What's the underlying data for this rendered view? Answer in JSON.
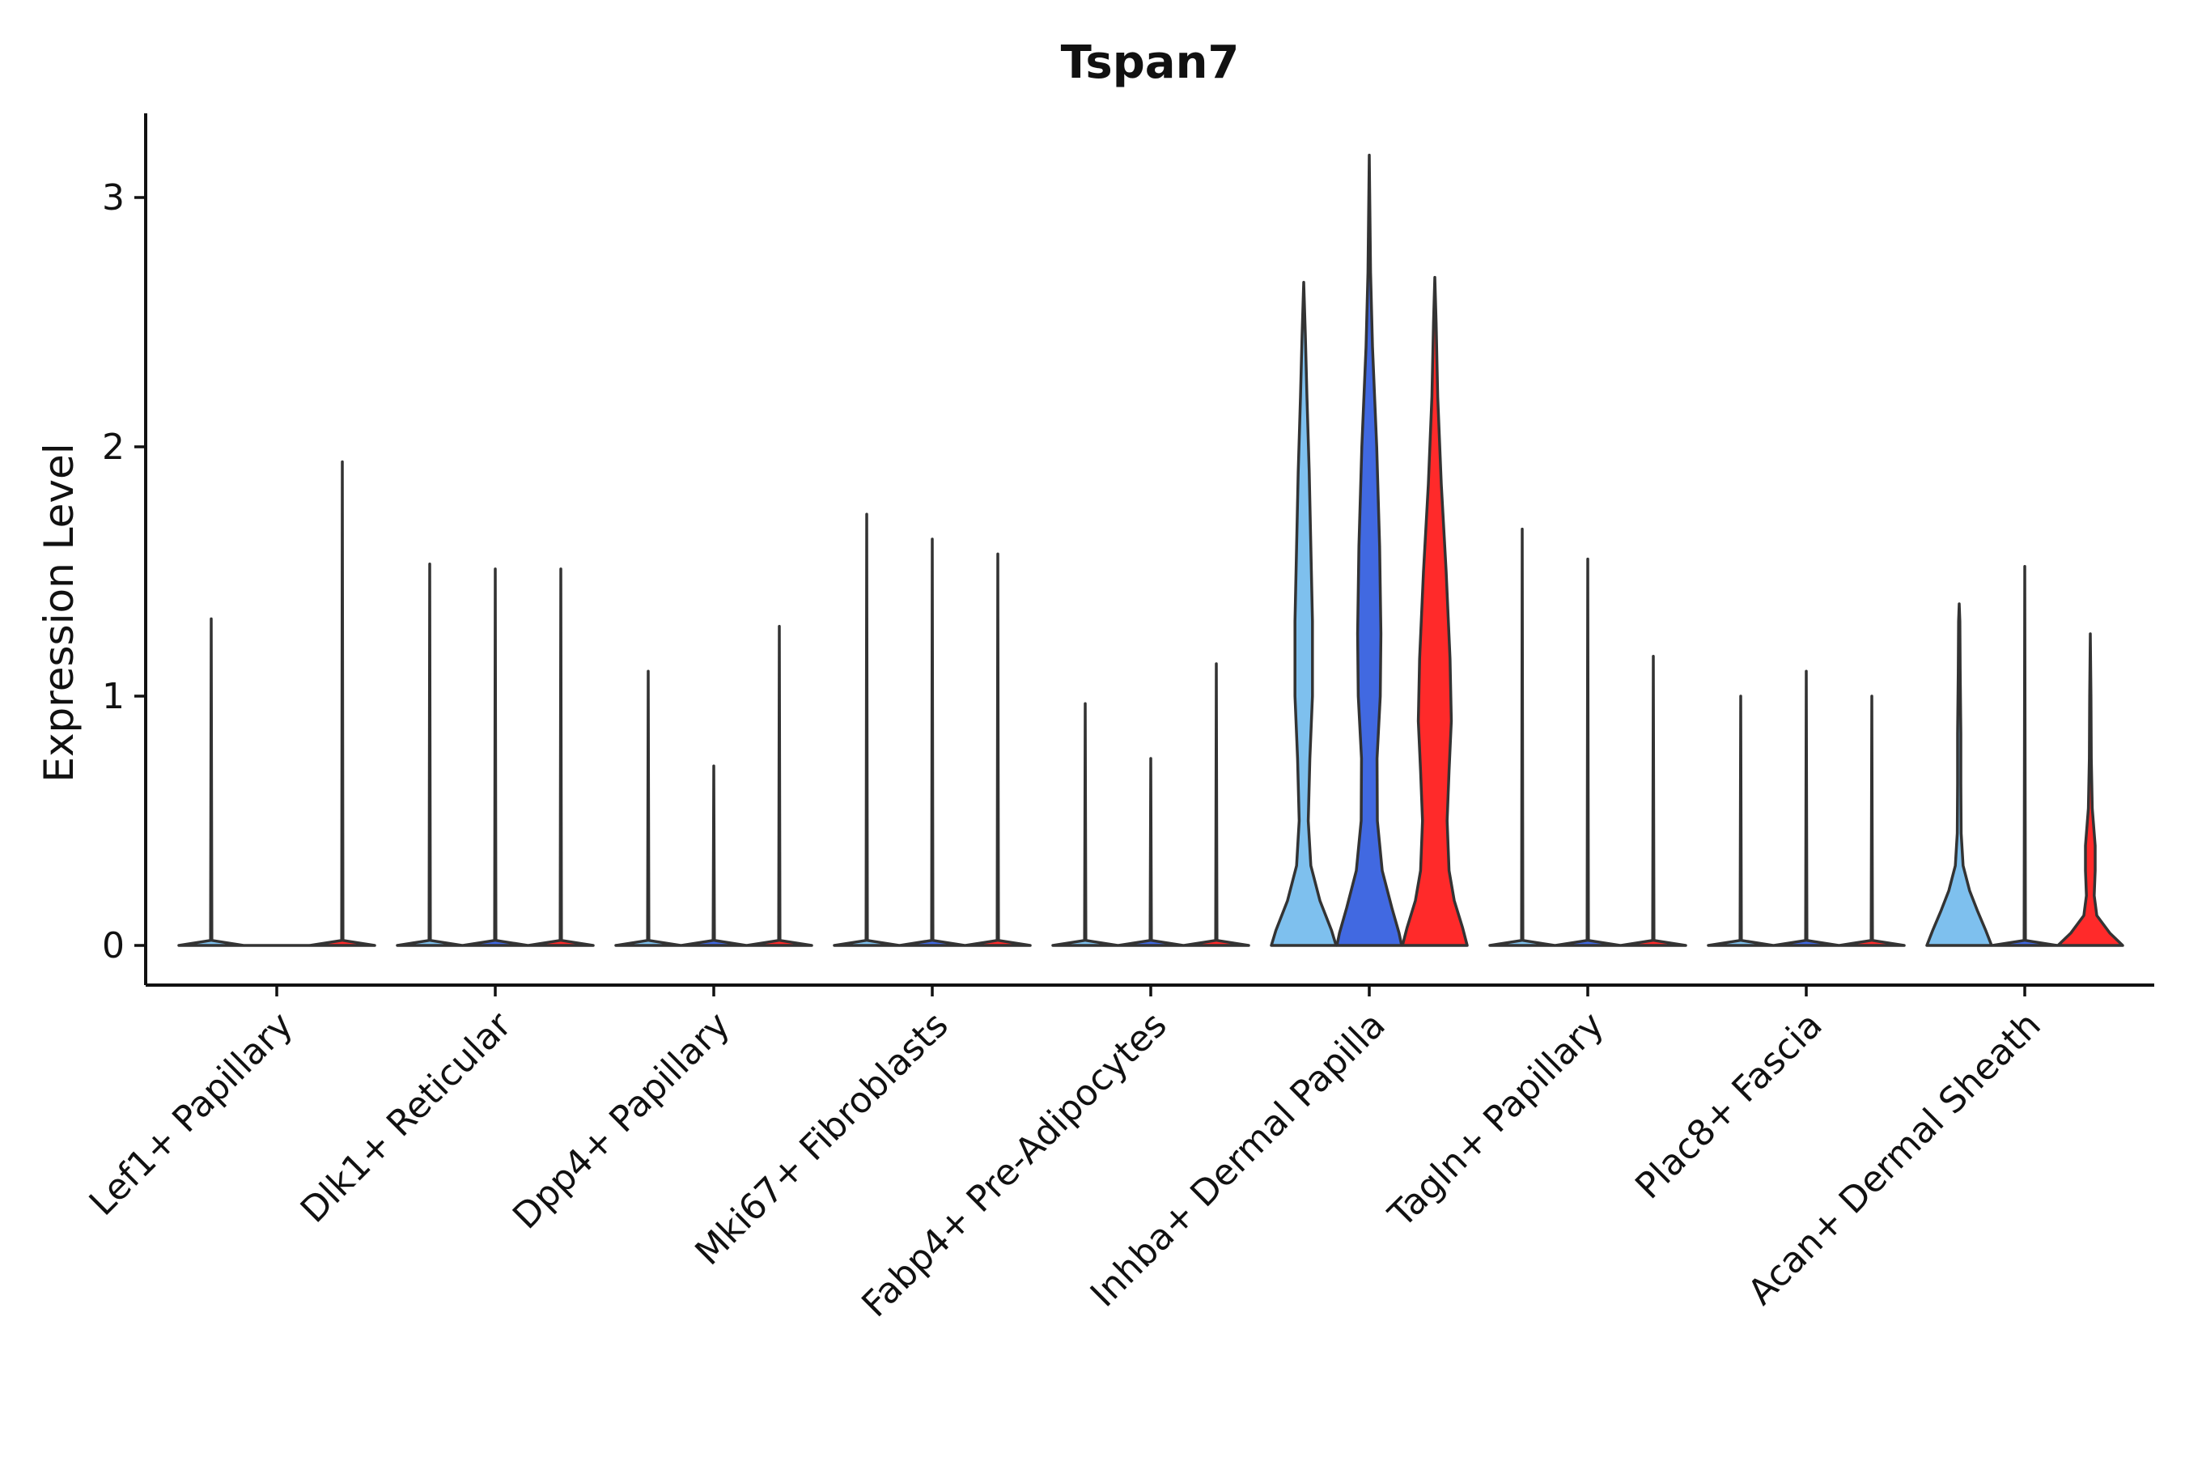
{
  "chart_data": {
    "type": "violin",
    "title": "Tspan7",
    "xlabel": "",
    "ylabel": "Expression Level",
    "ylim": [
      -0.16,
      3.33
    ],
    "yticks": [
      0,
      1,
      2,
      3
    ],
    "grid": false,
    "legend": "none",
    "colors": {
      "light": "#7EC0EE",
      "mid": "#4169E1",
      "red": "#FF2A2A",
      "stroke": "#333333"
    },
    "categories": [
      "Lef1+ Papillary",
      "Dlk1+ Reticular",
      "Dpp4+ Papillary",
      "Mki67+ Fibroblasts",
      "Fabp4+ Pre-Adipocytes",
      "Inhba+ Dermal Papilla",
      "Tagln+ Papillary",
      "Plac8+ Fascia",
      "Acan+ Dermal Sheath"
    ],
    "groups": [
      {
        "category": "Lef1+ Papillary",
        "violins": [
          {
            "color": "light",
            "max": 1.31,
            "profile": [
              [
                0,
                1
              ],
              [
                0.02,
                0.02
              ],
              [
                1.31,
                0.0
              ]
            ]
          },
          {
            "color": "mid",
            "max": 0.0,
            "profile": [
              [
                0,
                1
              ]
            ]
          },
          {
            "color": "red",
            "max": 1.94,
            "profile": [
              [
                0,
                1
              ],
              [
                0.02,
                0.02
              ],
              [
                1.94,
                0.0
              ]
            ]
          }
        ]
      },
      {
        "category": "Dlk1+ Reticular",
        "violins": [
          {
            "color": "light",
            "max": 1.53,
            "profile": [
              [
                0,
                1
              ],
              [
                0.02,
                0.02
              ],
              [
                1.53,
                0.0
              ]
            ]
          },
          {
            "color": "mid",
            "max": 1.51,
            "profile": [
              [
                0,
                1
              ],
              [
                0.02,
                0.02
              ],
              [
                1.51,
                0.0
              ]
            ]
          },
          {
            "color": "red",
            "max": 1.51,
            "profile": [
              [
                0,
                1
              ],
              [
                0.02,
                0.02
              ],
              [
                1.51,
                0.0
              ]
            ]
          }
        ]
      },
      {
        "category": "Dpp4+ Papillary",
        "violins": [
          {
            "color": "light",
            "max": 1.1,
            "profile": [
              [
                0,
                1
              ],
              [
                0.02,
                0.02
              ],
              [
                1.1,
                0.0
              ]
            ]
          },
          {
            "color": "mid",
            "max": 0.72,
            "profile": [
              [
                0,
                1
              ],
              [
                0.02,
                0.02
              ],
              [
                0.72,
                0.0
              ]
            ]
          },
          {
            "color": "red",
            "max": 1.28,
            "profile": [
              [
                0,
                1
              ],
              [
                0.02,
                0.02
              ],
              [
                1.28,
                0.0
              ]
            ]
          }
        ]
      },
      {
        "category": "Mki67+ Fibroblasts",
        "violins": [
          {
            "color": "light",
            "max": 1.73,
            "profile": [
              [
                0,
                1
              ],
              [
                0.02,
                0.02
              ],
              [
                1.73,
                0.0
              ]
            ]
          },
          {
            "color": "mid",
            "max": 1.63,
            "profile": [
              [
                0,
                1
              ],
              [
                0.02,
                0.02
              ],
              [
                1.63,
                0.0
              ]
            ]
          },
          {
            "color": "red",
            "max": 1.57,
            "profile": [
              [
                0,
                1
              ],
              [
                0.02,
                0.02
              ],
              [
                1.57,
                0.0
              ]
            ]
          }
        ]
      },
      {
        "category": "Fabp4+ Pre-Adipocytes",
        "violins": [
          {
            "color": "light",
            "max": 0.97,
            "profile": [
              [
                0,
                1
              ],
              [
                0.02,
                0.02
              ],
              [
                0.97,
                0.0
              ]
            ]
          },
          {
            "color": "mid",
            "max": 0.75,
            "profile": [
              [
                0,
                1
              ],
              [
                0.02,
                0.02
              ],
              [
                0.75,
                0.0
              ]
            ]
          },
          {
            "color": "red",
            "max": 1.13,
            "profile": [
              [
                0,
                1
              ],
              [
                0.02,
                0.02
              ],
              [
                1.13,
                0.0
              ]
            ]
          }
        ]
      },
      {
        "category": "Inhba+ Dermal Papilla",
        "violins": [
          {
            "color": "light",
            "max": 2.66,
            "profile": [
              [
                0,
                1
              ],
              [
                0.06,
                0.86
              ],
              [
                0.18,
                0.5
              ],
              [
                0.32,
                0.22
              ],
              [
                0.5,
                0.14
              ],
              [
                0.75,
                0.19
              ],
              [
                1.0,
                0.27
              ],
              [
                1.3,
                0.27
              ],
              [
                1.6,
                0.22
              ],
              [
                1.9,
                0.17
              ],
              [
                2.2,
                0.1
              ],
              [
                2.45,
                0.05
              ],
              [
                2.66,
                0.0
              ]
            ]
          },
          {
            "color": "mid",
            "max": 3.17,
            "profile": [
              [
                0,
                1
              ],
              [
                0.05,
                0.92
              ],
              [
                0.15,
                0.7
              ],
              [
                0.3,
                0.4
              ],
              [
                0.5,
                0.25
              ],
              [
                0.75,
                0.24
              ],
              [
                1.0,
                0.34
              ],
              [
                1.25,
                0.36
              ],
              [
                1.6,
                0.32
              ],
              [
                2.0,
                0.23
              ],
              [
                2.4,
                0.1
              ],
              [
                2.7,
                0.04
              ],
              [
                3.17,
                0.0
              ]
            ]
          },
          {
            "color": "red",
            "max": 2.68,
            "profile": [
              [
                0,
                1
              ],
              [
                0.07,
                0.86
              ],
              [
                0.18,
                0.6
              ],
              [
                0.3,
                0.44
              ],
              [
                0.5,
                0.38
              ],
              [
                0.7,
                0.44
              ],
              [
                0.9,
                0.51
              ],
              [
                1.15,
                0.47
              ],
              [
                1.5,
                0.35
              ],
              [
                1.85,
                0.2
              ],
              [
                2.2,
                0.09
              ],
              [
                2.5,
                0.04
              ],
              [
                2.68,
                0.0
              ]
            ]
          }
        ]
      },
      {
        "category": "Tagln+ Papillary",
        "violins": [
          {
            "color": "light",
            "max": 1.67,
            "profile": [
              [
                0,
                1
              ],
              [
                0.02,
                0.02
              ],
              [
                1.67,
                0.0
              ]
            ]
          },
          {
            "color": "mid",
            "max": 1.55,
            "profile": [
              [
                0,
                1
              ],
              [
                0.02,
                0.02
              ],
              [
                1.55,
                0.0
              ]
            ]
          },
          {
            "color": "red",
            "max": 1.16,
            "profile": [
              [
                0,
                1
              ],
              [
                0.02,
                0.02
              ],
              [
                1.16,
                0.0
              ]
            ]
          }
        ]
      },
      {
        "category": "Plac8+ Fascia",
        "violins": [
          {
            "color": "light",
            "max": 1.0,
            "profile": [
              [
                0,
                1
              ],
              [
                0.02,
                0.02
              ],
              [
                1.0,
                0.0
              ]
            ]
          },
          {
            "color": "mid",
            "max": 1.1,
            "profile": [
              [
                0,
                1
              ],
              [
                0.02,
                0.02
              ],
              [
                1.1,
                0.0
              ]
            ]
          },
          {
            "color": "red",
            "max": 1.0,
            "profile": [
              [
                0,
                1
              ],
              [
                0.02,
                0.02
              ],
              [
                1.0,
                0.0
              ]
            ]
          }
        ]
      },
      {
        "category": "Acan+ Dermal Sheath",
        "violins": [
          {
            "color": "light",
            "max": 1.37,
            "profile": [
              [
                0,
                1
              ],
              [
                0.06,
                0.82
              ],
              [
                0.14,
                0.56
              ],
              [
                0.22,
                0.32
              ],
              [
                0.32,
                0.12
              ],
              [
                0.45,
                0.06
              ],
              [
                0.65,
                0.05
              ],
              [
                0.85,
                0.05
              ],
              [
                1.1,
                0.03
              ],
              [
                1.3,
                0.02
              ],
              [
                1.37,
                0.0
              ]
            ]
          },
          {
            "color": "mid",
            "max": 1.52,
            "profile": [
              [
                0,
                1
              ],
              [
                0.02,
                0.02
              ],
              [
                1.52,
                0.0
              ]
            ]
          },
          {
            "color": "red",
            "max": 1.25,
            "profile": [
              [
                0,
                1
              ],
              [
                0.05,
                0.6
              ],
              [
                0.12,
                0.2
              ],
              [
                0.2,
                0.12
              ],
              [
                0.3,
                0.15
              ],
              [
                0.4,
                0.15
              ],
              [
                0.55,
                0.06
              ],
              [
                0.75,
                0.03
              ],
              [
                1.0,
                0.02
              ],
              [
                1.25,
                0.0
              ]
            ]
          }
        ]
      }
    ]
  }
}
